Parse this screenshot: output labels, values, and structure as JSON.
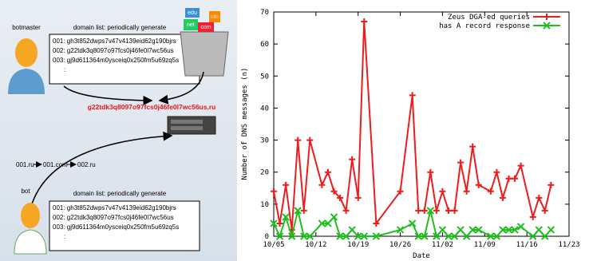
{
  "diagram": {
    "botmaster": "botmaster",
    "bot": "bot",
    "top_list": {
      "heading": "domain list: periodically generate",
      "items": [
        "001: gh3t852dwps7v47v4139eid62g190bjrs",
        "002: g22tdk3q8097o97fcs0j46fe0l7wc56us",
        "003: gj9d611364m0ysceiq0x250fm5u69zq5s",
        ":"
      ]
    },
    "bottom_list": {
      "heading": "domain list: periodically generate",
      "items": [
        "001: gh3t852dwps7v47v4139eid62g190bjrs",
        "002: g22tdk3q8097o97fcs0j46fe0l7wc56us",
        "003: gj9d611364m0ysceiq0x250fm5u69zq5s",
        ":"
      ]
    },
    "domain": "g22tdk3q8097o97fcs0j46fe0l7wc56us.ru",
    "chain": [
      "001.ru",
      "001.com",
      "002.ru"
    ],
    "icon_labels": [
      "edu",
      "net",
      "com",
      "info"
    ]
  },
  "chart_data": {
    "type": "line",
    "ylabel": "Number of DNS messages (n)",
    "xlabel": "Date",
    "x": [
      "10/05",
      "10/06",
      "10/07",
      "10/08",
      "10/09",
      "10/10",
      "10/11",
      "10/13",
      "10/14",
      "10/15",
      "10/16",
      "10/17",
      "10/18",
      "10/19",
      "10/20",
      "10/22",
      "10/26",
      "10/28",
      "10/29",
      "10/30",
      "10/31",
      "11/01",
      "11/02",
      "11/03",
      "11/04",
      "11/05",
      "11/06",
      "11/07",
      "11/08",
      "11/10",
      "11/11",
      "11/12",
      "11/13",
      "11/14",
      "11/15",
      "11/17",
      "11/18",
      "11/19",
      "11/20"
    ],
    "series": [
      {
        "name": "Zeus DGA-ed queries",
        "color": "#ee1c1c",
        "marker": "plus",
        "values": [
          14,
          4,
          16,
          2,
          30,
          8,
          30,
          16,
          20,
          14,
          12,
          8,
          24,
          12,
          67,
          4,
          14,
          44,
          8,
          8,
          20,
          8,
          14,
          8,
          8,
          23,
          14,
          28,
          16,
          14,
          20,
          12,
          18,
          18,
          22,
          6,
          12,
          8,
          16
        ]
      },
      {
        "name": "has A record response",
        "color": "#1fbf1f",
        "marker": "cross",
        "values": [
          4,
          0,
          6,
          0,
          8,
          0,
          0,
          4,
          4,
          6,
          0,
          0,
          2,
          0,
          0,
          0,
          2,
          4,
          0,
          0,
          8,
          0,
          2,
          0,
          0,
          2,
          0,
          2,
          2,
          0,
          0,
          2,
          2,
          2,
          3,
          0,
          2,
          0,
          2
        ]
      }
    ],
    "xlim": [
      "10/05",
      "11/23"
    ],
    "xticks": [
      "10/05",
      "10/12",
      "10/19",
      "10/26",
      "11/02",
      "11/09",
      "11/16",
      "11/23"
    ],
    "ylim": [
      0,
      70
    ],
    "yticks": [
      0,
      10,
      20,
      30,
      40,
      50,
      60,
      70
    ],
    "legend": "upper right"
  }
}
